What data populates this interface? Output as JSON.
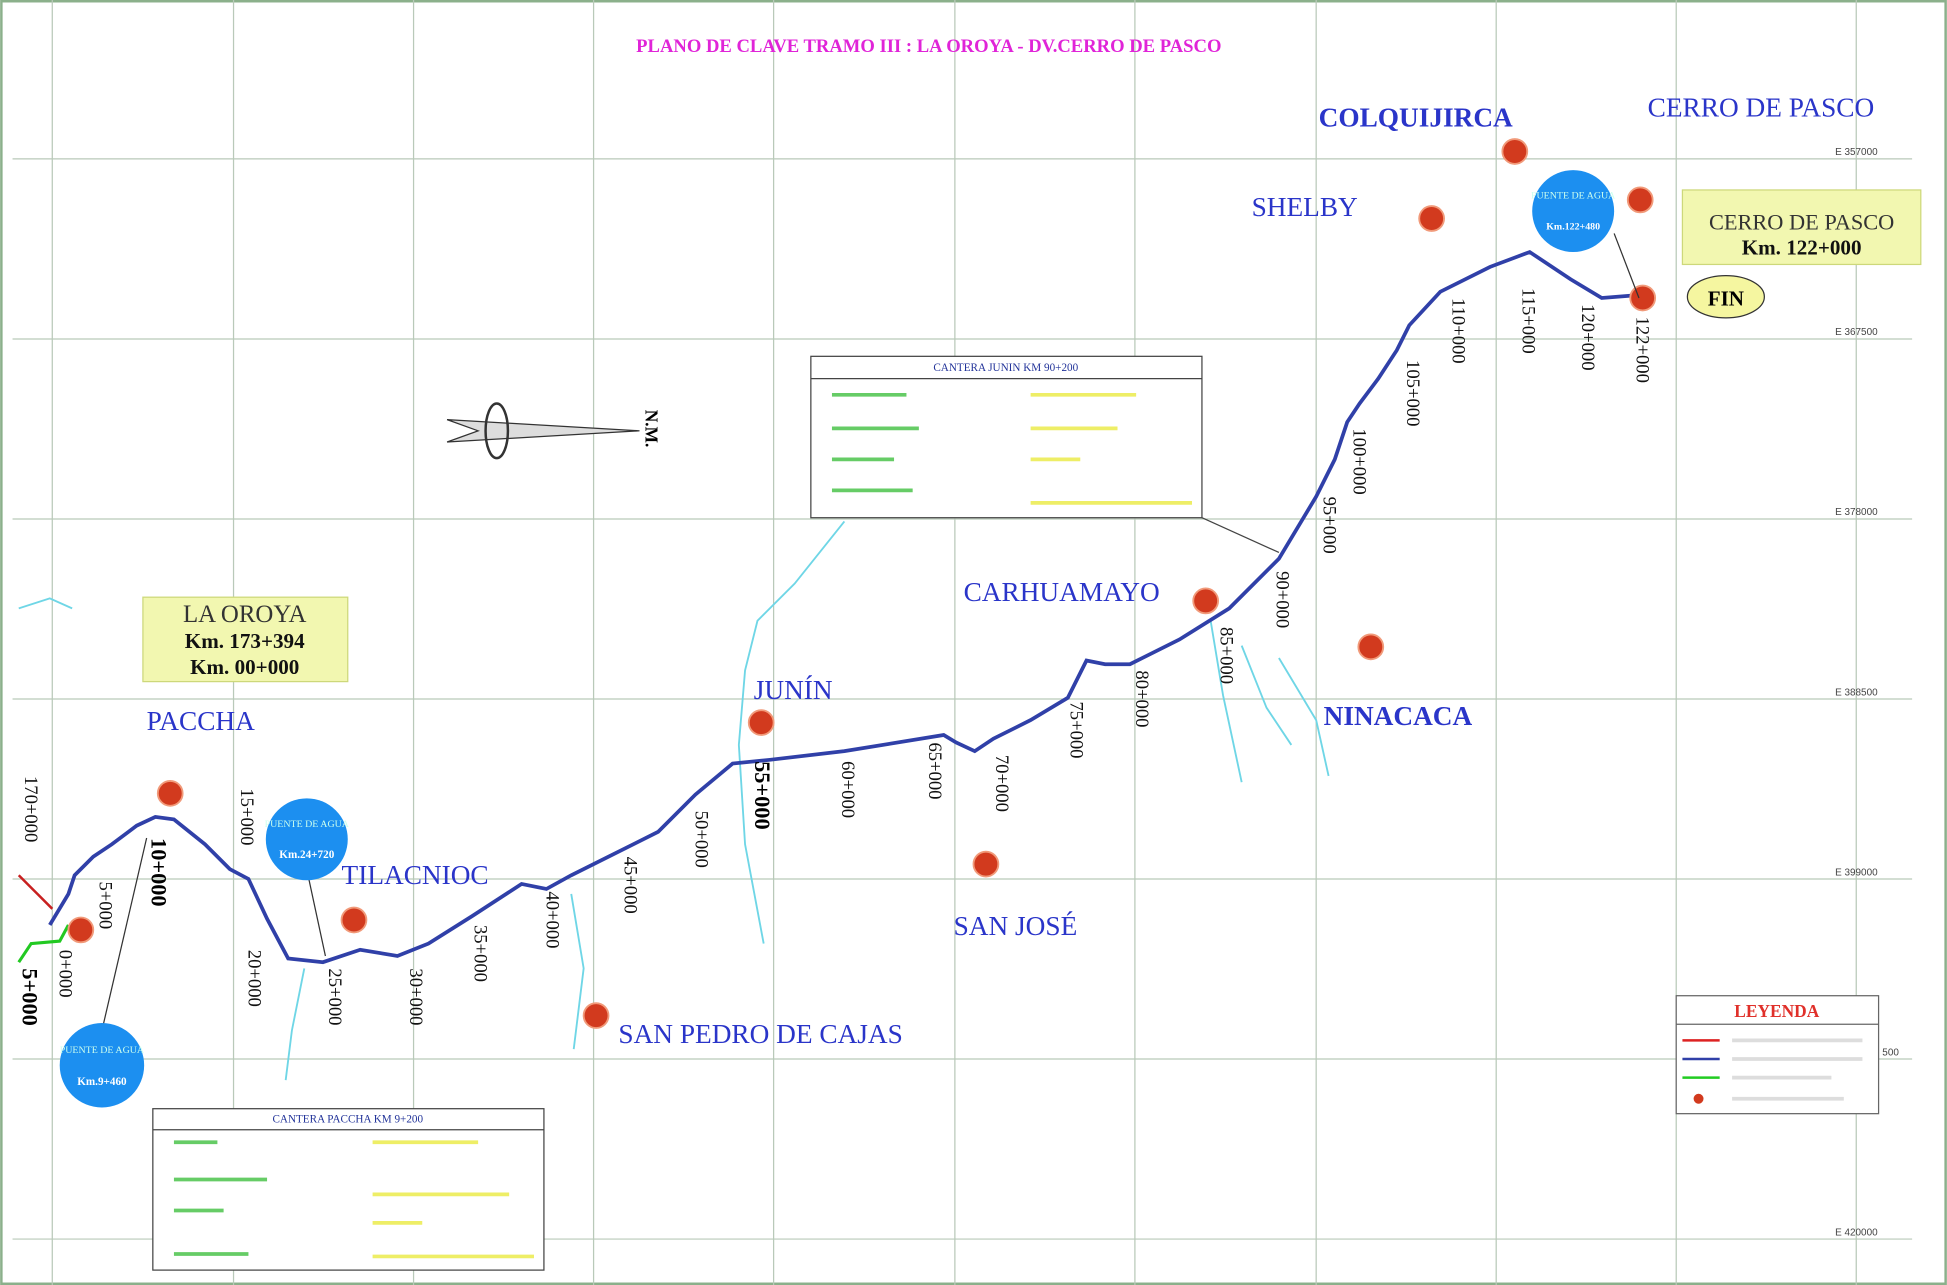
{
  "title": "PLANO DE CLAVE TRAMO III :  LA OROYA - DV.CERRO DE PASCO",
  "places": [
    "COLQUIJIRCA",
    "CERRO DE PASCO",
    "SHELBY",
    "CARHUAMAYO",
    "NINACACA",
    "JUNÍN",
    "PACCHA",
    "TILACNIOC",
    "SAN JOSÉ",
    "SAN PEDRO DE CAJAS"
  ],
  "start_box": {
    "name": "LA OROYA",
    "km1": "Km. 173+394",
    "km2": "Km. 00+000"
  },
  "end_box": {
    "name": "CERRO DE PASCO",
    "km": "Km. 122+000"
  },
  "end_label": "FIN",
  "north": "N.M.",
  "km_markers": [
    "170+000",
    "5+000",
    "0+000",
    "5+000",
    "10+000",
    "15+000",
    "20+000",
    "25+000",
    "30+000",
    "35+000",
    "40+000",
    "45+000",
    "50+000",
    "55+000",
    "60+000",
    "65+000",
    "70+000",
    "75+000",
    "80+000",
    "85+000",
    "90+000",
    "95+000",
    "100+000",
    "105+000",
    "110+000",
    "115+000",
    "120+000",
    "122+000"
  ],
  "quarries": [
    "CANTERA  JUNIN  KM  90+200",
    "CANTERA  PACCHA  KM  9+200"
  ],
  "bridges": [
    {
      "label": "PUENTE DE AGUA",
      "km": "Km.9+460"
    },
    {
      "label": "PUENTE DE AGUA",
      "km": "Km.24+720"
    },
    {
      "label": "PUENTE DE AGUA",
      "km": "Km.122+480"
    }
  ],
  "legend_title": "LEYENDA",
  "grid_labels": [
    "E  357000",
    "E  367500",
    "E  378000",
    "E  388500",
    "E  399000",
    "500",
    "E  420000"
  ]
}
